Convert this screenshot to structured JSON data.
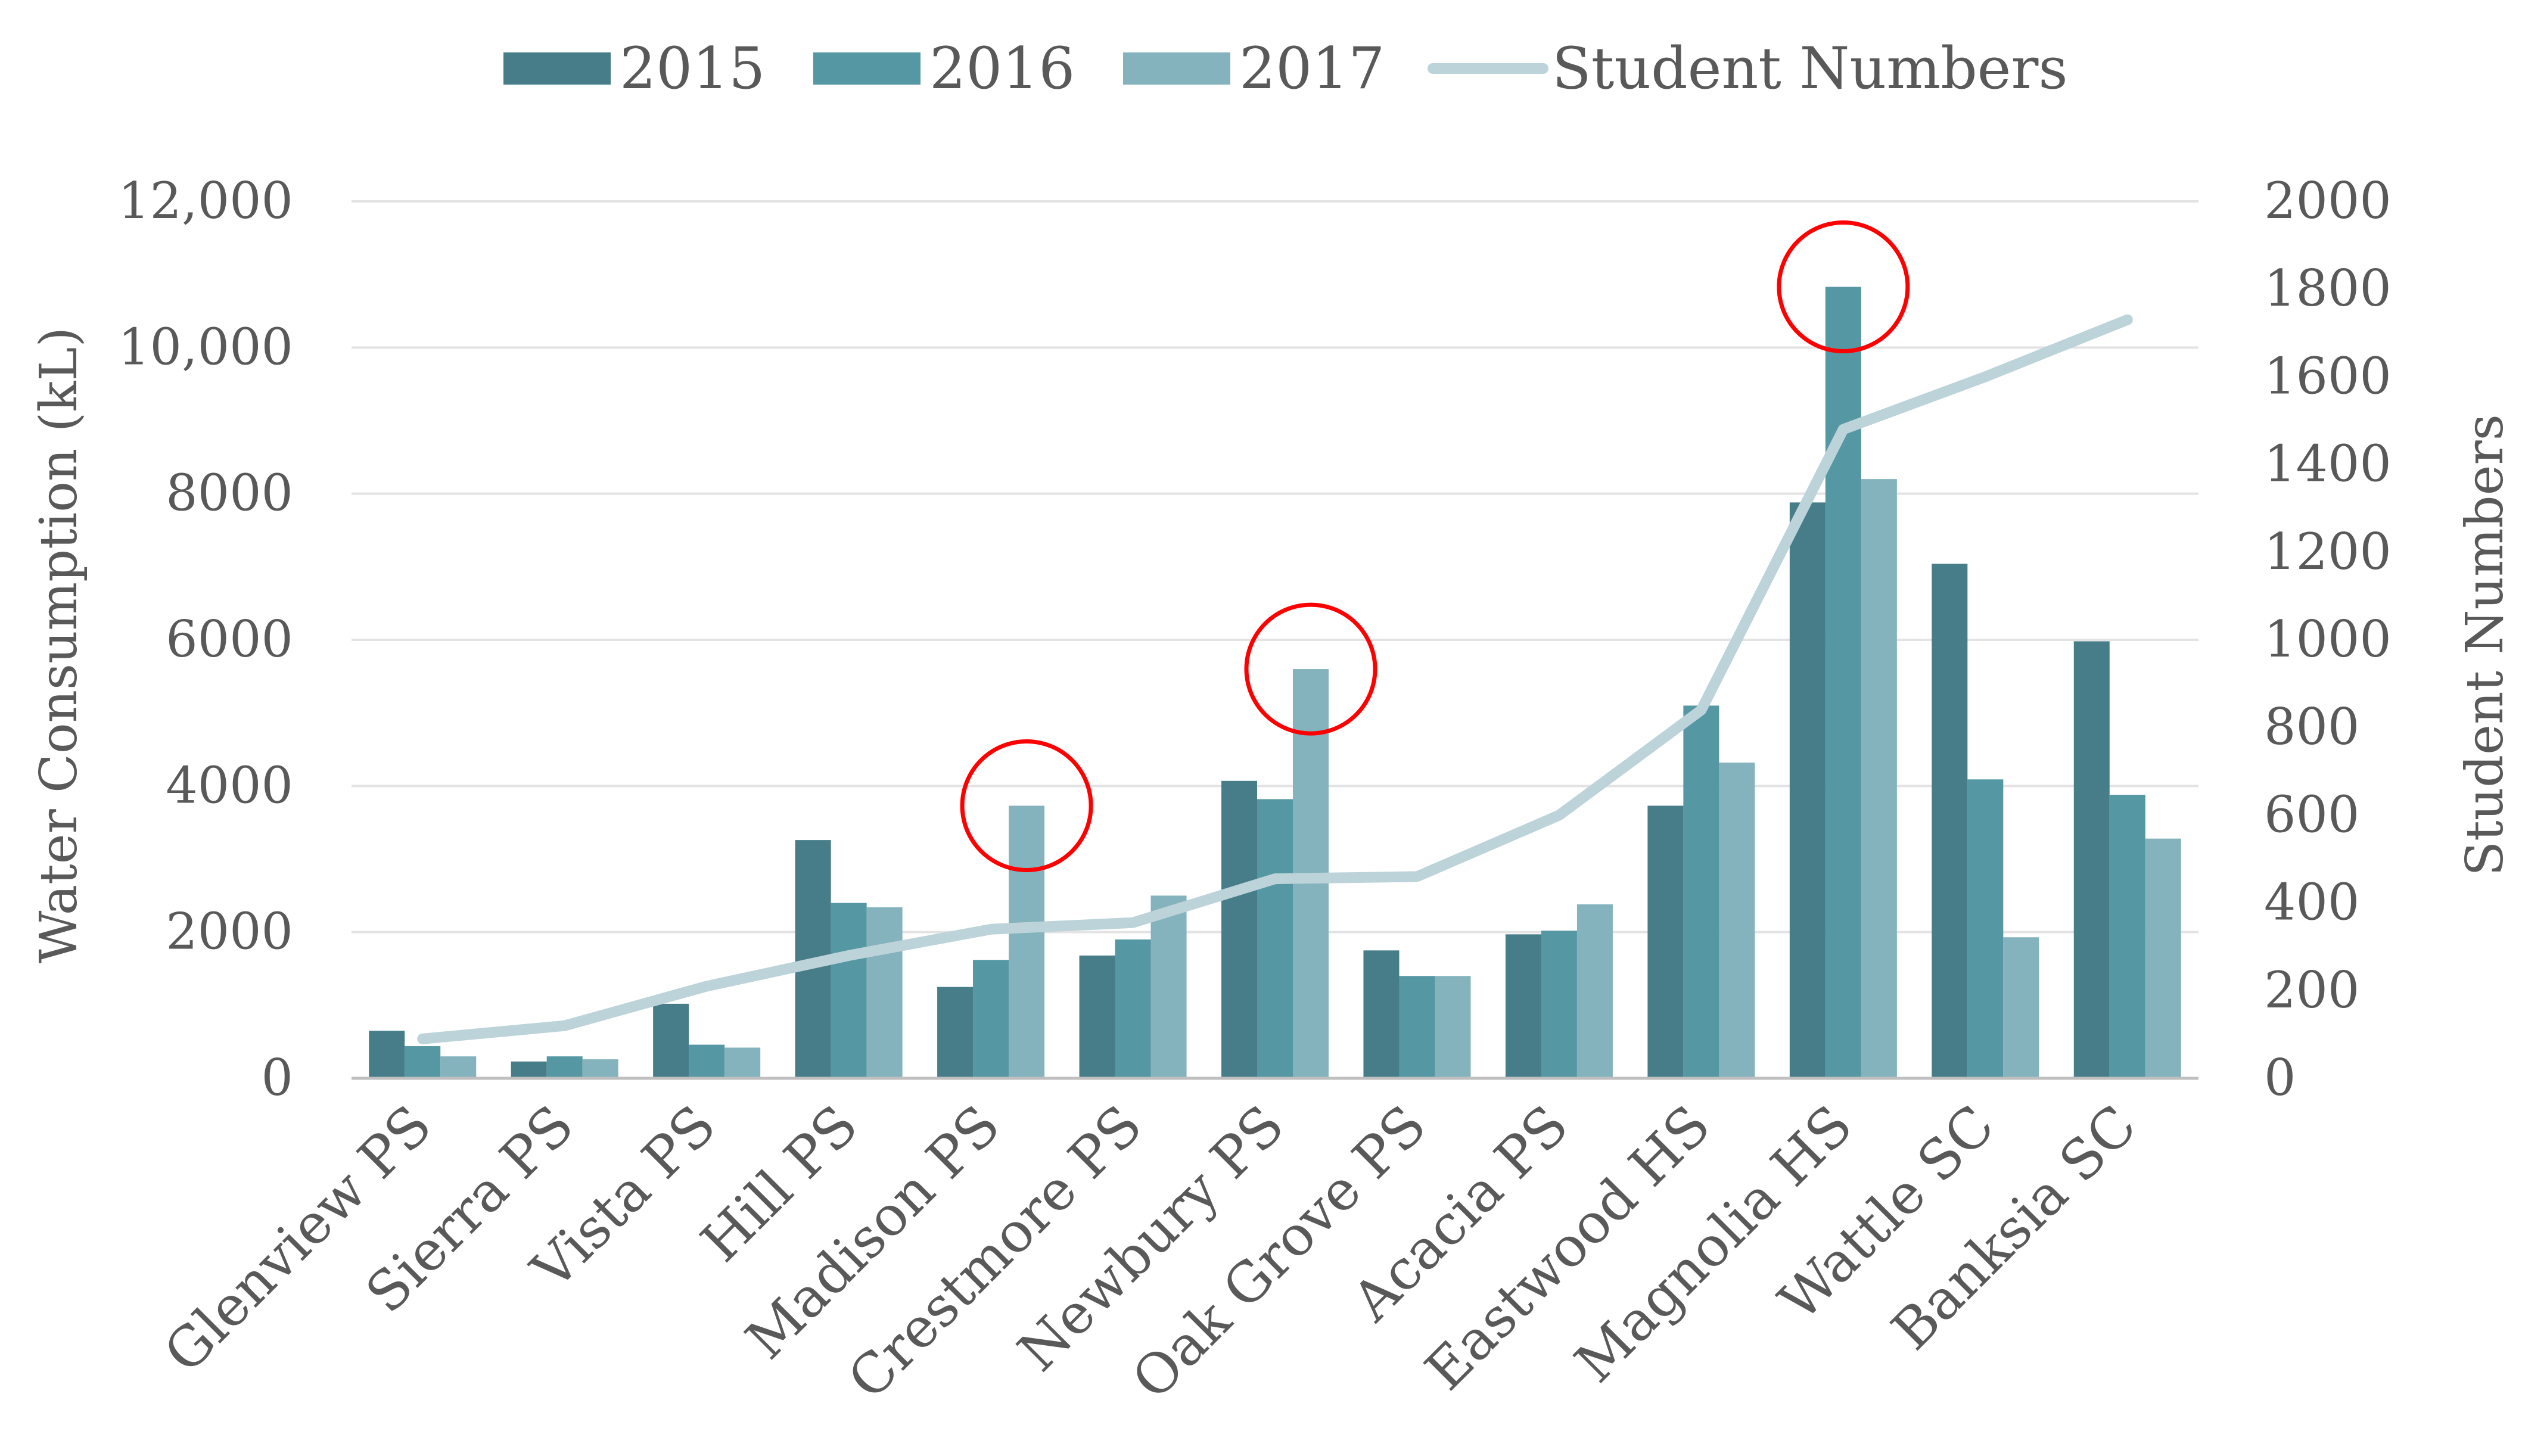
{
  "chart_data": {
    "type": "bar",
    "categories": [
      "Glenview PS",
      "Sierra PS",
      "Vista PS",
      "Hill PS",
      "Madison PS",
      "Crestmore PS",
      "Newbury PS",
      "Oak Grove PS",
      "Acacia PS",
      "Eastwood HS",
      "Magnolia HS",
      "Wattle SC",
      "Banksia SC"
    ],
    "series": [
      {
        "name": "2015",
        "color": "#467d88",
        "values": [
          650,
          230,
          1020,
          3260,
          1250,
          1680,
          4070,
          1750,
          1970,
          3730,
          7880,
          7040,
          5980
        ]
      },
      {
        "name": "2016",
        "color": "#5597a2",
        "values": [
          440,
          300,
          460,
          2400,
          1620,
          1900,
          3820,
          1400,
          2020,
          5100,
          10830,
          4090,
          3880
        ]
      },
      {
        "name": "2017",
        "color": "#84b3bd",
        "values": [
          300,
          260,
          420,
          2340,
          3730,
          2500,
          5600,
          1400,
          2380,
          4320,
          8200,
          1930,
          3280
        ]
      }
    ],
    "line_series": {
      "name": "Student Numbers",
      "color": "#bcd3d9",
      "axis": "right",
      "values": [
        90,
        120,
        210,
        280,
        340,
        355,
        455,
        460,
        600,
        840,
        1480,
        1600,
        1730
      ]
    },
    "highlighted_categories": [
      "Madison PS",
      "Newbury PS",
      "Magnolia HS"
    ],
    "highlight_color": "#ff0000",
    "ylabel": "Water Consumption (kL)",
    "ylabel_right": "Student Numbers",
    "ylim": [
      0,
      12000
    ],
    "ylim_right": [
      0,
      2000
    ],
    "yticks": [
      {
        "value": 0,
        "label": "0"
      },
      {
        "value": 2000,
        "label": "2000"
      },
      {
        "value": 4000,
        "label": "4000"
      },
      {
        "value": 6000,
        "label": "6000"
      },
      {
        "value": 8000,
        "label": "8000"
      },
      {
        "value": 10000,
        "label": "10,000"
      },
      {
        "value": 12000,
        "label": "12,000"
      }
    ],
    "yticks_right": [
      0,
      200,
      400,
      600,
      800,
      1000,
      1200,
      1400,
      1600,
      1800,
      2000
    ],
    "grid": true,
    "legend_position": "top"
  }
}
